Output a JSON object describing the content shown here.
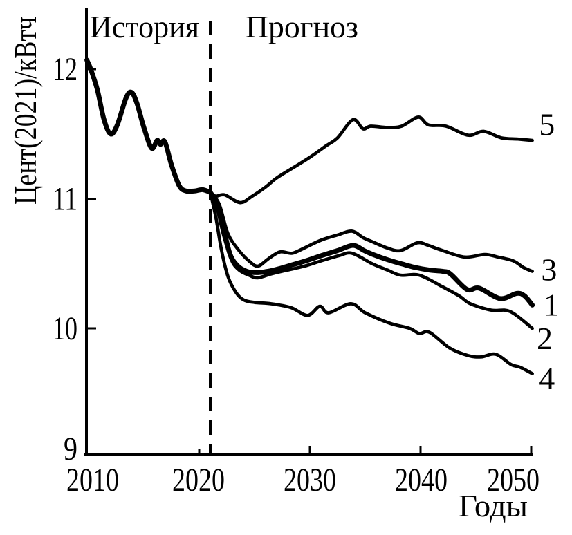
{
  "figure": {
    "background_color": "#ffffff",
    "line_color": "#000000"
  },
  "chart_data": {
    "type": "line",
    "title": "",
    "xlabel": "Годы",
    "ylabel": "Цент(2021)/кВтч",
    "region_labels": {
      "history": "История",
      "forecast": "Прогноз"
    },
    "xlim": [
      2009.8,
      2050.4
    ],
    "ylim": [
      9,
      12.47
    ],
    "x_ticks": [
      2010,
      2020,
      2030,
      2040,
      2050
    ],
    "y_ticks": [
      9,
      10,
      11,
      12
    ],
    "grid": false,
    "legend_position": "line-end-labels-right",
    "divider_year": 2021,
    "divider_style": "dashed-vertical",
    "series": [
      {
        "name": "history",
        "label": "",
        "thick": true,
        "points": [
          [
            2009.85,
            12.07
          ],
          [
            2010.2,
            12.0
          ],
          [
            2010.8,
            11.84
          ],
          [
            2011.4,
            11.61
          ],
          [
            2012.0,
            11.5
          ],
          [
            2012.6,
            11.57
          ],
          [
            2013.4,
            11.78
          ],
          [
            2013.9,
            11.82
          ],
          [
            2014.4,
            11.73
          ],
          [
            2015.0,
            11.55
          ],
          [
            2015.7,
            11.39
          ],
          [
            2016.2,
            11.45
          ],
          [
            2016.5,
            11.42
          ],
          [
            2016.9,
            11.44
          ],
          [
            2017.5,
            11.26
          ],
          [
            2018.2,
            11.1
          ],
          [
            2018.8,
            11.06
          ],
          [
            2019.6,
            11.06
          ],
          [
            2020.3,
            11.07
          ],
          [
            2021.0,
            11.05
          ]
        ]
      },
      {
        "name": "scenario-3",
        "label": "3",
        "thick": false,
        "label_anchor": [
          2050.9,
          10.37
        ],
        "points": [
          [
            2021,
            11.05
          ],
          [
            2021.8,
            10.96
          ],
          [
            2022.6,
            10.73
          ],
          [
            2023.6,
            10.6
          ],
          [
            2024.5,
            10.52
          ],
          [
            2025.3,
            10.48
          ],
          [
            2026.3,
            10.54
          ],
          [
            2027.3,
            10.59
          ],
          [
            2028.4,
            10.58
          ],
          [
            2029.5,
            10.62
          ],
          [
            2031.0,
            10.68
          ],
          [
            2032.5,
            10.72
          ],
          [
            2033.8,
            10.75
          ],
          [
            2034.8,
            10.7
          ],
          [
            2035.6,
            10.67
          ],
          [
            2037.0,
            10.62
          ],
          [
            2038.2,
            10.6
          ],
          [
            2039.7,
            10.66
          ],
          [
            2040.7,
            10.64
          ],
          [
            2042.0,
            10.6
          ],
          [
            2044.0,
            10.55
          ],
          [
            2045.8,
            10.57
          ],
          [
            2047.0,
            10.55
          ],
          [
            2048.4,
            10.52
          ],
          [
            2049.3,
            10.47
          ],
          [
            2050.1,
            10.44
          ]
        ]
      },
      {
        "name": "scenario-2",
        "label": "2",
        "thick": false,
        "label_anchor": [
          2050.5,
          9.84
        ],
        "points": [
          [
            2021,
            11.05
          ],
          [
            2021.6,
            10.93
          ],
          [
            2022.2,
            10.72
          ],
          [
            2022.9,
            10.53
          ],
          [
            2023.6,
            10.45
          ],
          [
            2024.5,
            10.41
          ],
          [
            2025.3,
            10.39
          ],
          [
            2026.5,
            10.42
          ],
          [
            2028.0,
            10.45
          ],
          [
            2029.5,
            10.48
          ],
          [
            2031.0,
            10.52
          ],
          [
            2032.6,
            10.56
          ],
          [
            2033.8,
            10.58
          ],
          [
            2035.6,
            10.5
          ],
          [
            2037.0,
            10.45
          ],
          [
            2038.2,
            10.41
          ],
          [
            2039.9,
            10.41
          ],
          [
            2042.0,
            10.32
          ],
          [
            2043.5,
            10.25
          ],
          [
            2044.5,
            10.19
          ],
          [
            2046.4,
            10.14
          ],
          [
            2048.1,
            10.13
          ],
          [
            2050.1,
            10.0
          ]
        ]
      },
      {
        "name": "scenario-4",
        "label": "4",
        "thick": false,
        "label_anchor": [
          2050.7,
          9.53
        ],
        "points": [
          [
            2021,
            11.05
          ],
          [
            2021.5,
            10.86
          ],
          [
            2022.0,
            10.61
          ],
          [
            2022.6,
            10.4
          ],
          [
            2023.3,
            10.28
          ],
          [
            2024.0,
            10.22
          ],
          [
            2025.0,
            10.2
          ],
          [
            2026.5,
            10.19
          ],
          [
            2028.3,
            10.16
          ],
          [
            2029.8,
            10.1
          ],
          [
            2030.9,
            10.17
          ],
          [
            2031.7,
            10.12
          ],
          [
            2033.7,
            10.19
          ],
          [
            2035.0,
            10.12
          ],
          [
            2037.2,
            10.04
          ],
          [
            2039.0,
            10.0
          ],
          [
            2039.9,
            9.96
          ],
          [
            2040.8,
            9.97
          ],
          [
            2042.6,
            9.85
          ],
          [
            2044.3,
            9.79
          ],
          [
            2045.5,
            9.78
          ],
          [
            2046.8,
            9.8
          ],
          [
            2048.2,
            9.72
          ],
          [
            2049.0,
            9.7
          ],
          [
            2050.1,
            9.65
          ]
        ]
      },
      {
        "name": "scenario-5",
        "label": "5",
        "thick": false,
        "label_anchor": [
          2050.7,
          11.49
        ],
        "points": [
          [
            2021,
            11.05
          ],
          [
            2021.5,
            11.02
          ],
          [
            2022.3,
            11.03
          ],
          [
            2023.7,
            10.97
          ],
          [
            2024.8,
            11.02
          ],
          [
            2026.0,
            11.09
          ],
          [
            2027.0,
            11.16
          ],
          [
            2028.5,
            11.24
          ],
          [
            2030.0,
            11.32
          ],
          [
            2031.5,
            11.41
          ],
          [
            2032.5,
            11.47
          ],
          [
            2033.9,
            11.61
          ],
          [
            2034.8,
            11.54
          ],
          [
            2035.5,
            11.56
          ],
          [
            2037.0,
            11.55
          ],
          [
            2038.3,
            11.56
          ],
          [
            2039.8,
            11.63
          ],
          [
            2040.7,
            11.57
          ],
          [
            2042.3,
            11.56
          ],
          [
            2044.3,
            11.49
          ],
          [
            2045.7,
            11.52
          ],
          [
            2047.3,
            11.47
          ],
          [
            2048.8,
            11.46
          ],
          [
            2050.1,
            11.45
          ]
        ]
      },
      {
        "name": "scenario-1",
        "label": "1",
        "thick": true,
        "label_anchor": [
          2051.1,
          10.1
        ],
        "points": [
          [
            2021,
            11.05
          ],
          [
            2021.6,
            10.96
          ],
          [
            2022.2,
            10.77
          ],
          [
            2022.8,
            10.57
          ],
          [
            2023.5,
            10.48
          ],
          [
            2024.3,
            10.44
          ],
          [
            2025.2,
            10.43
          ],
          [
            2026.2,
            10.44
          ],
          [
            2027.2,
            10.46
          ],
          [
            2028.4,
            10.49
          ],
          [
            2029.6,
            10.52
          ],
          [
            2031.0,
            10.56
          ],
          [
            2032.5,
            10.6
          ],
          [
            2033.9,
            10.64
          ],
          [
            2034.9,
            10.6
          ],
          [
            2035.7,
            10.57
          ],
          [
            2037.0,
            10.53
          ],
          [
            2038.2,
            10.5
          ],
          [
            2039.5,
            10.47
          ],
          [
            2040.8,
            10.45
          ],
          [
            2042.0,
            10.44
          ],
          [
            2042.7,
            10.42
          ],
          [
            2044.2,
            10.3
          ],
          [
            2045.3,
            10.31
          ],
          [
            2047.2,
            10.23
          ],
          [
            2048.7,
            10.27
          ],
          [
            2049.4,
            10.25
          ],
          [
            2050.1,
            10.18
          ]
        ]
      }
    ]
  }
}
